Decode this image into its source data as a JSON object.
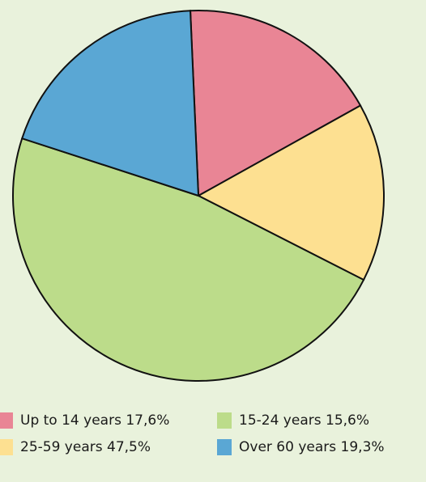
{
  "chart_data": {
    "type": "pie",
    "categories": [
      "Up to 14 years",
      "15-24 years",
      "25-59 years",
      "Over 60 years"
    ],
    "values": [
      17.6,
      15.6,
      47.5,
      19.3
    ],
    "value_labels": [
      "17,6%",
      "15,6%",
      "47,5%",
      "19,3%"
    ],
    "colors": [
      "#e98595",
      "#fde091",
      "#bcdc8a",
      "#5aa7d4"
    ],
    "legend_colors": [
      "#e98595",
      "#bcdc8a",
      "#fde091",
      "#5aa7d4"
    ],
    "legend": "bottom"
  }
}
